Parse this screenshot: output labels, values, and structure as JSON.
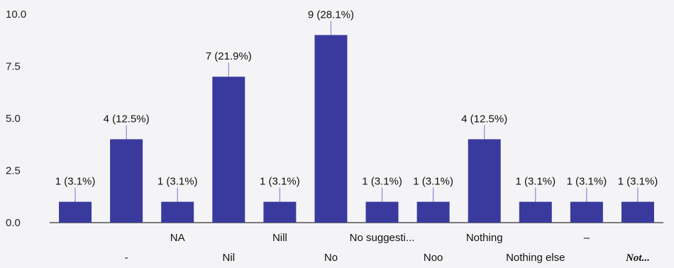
{
  "chart_data": {
    "type": "bar",
    "categories": [
      "",
      "-",
      "NA",
      "Nil",
      "Nill",
      "No",
      "No suggesti...",
      "Noo",
      "Nothing",
      "Nothing else",
      "–",
      "Not..."
    ],
    "values": [
      1,
      4,
      1,
      7,
      1,
      9,
      1,
      1,
      4,
      1,
      1,
      1
    ],
    "data_labels": [
      "1 (3.1%)",
      "4 (12.5%)",
      "1 (3.1%)",
      "7 (21.9%)",
      "1 (3.1%)",
      "9 (28.1%)",
      "1 (3.1%)",
      "1 (3.1%)",
      "4 (12.5%)",
      "1 (3.1%)",
      "1 (3.1%)",
      "1 (3.1%)"
    ],
    "ylim": [
      0,
      10
    ],
    "yticks": [
      "0.0",
      "2.5",
      "5.0",
      "7.5",
      "10.0"
    ],
    "bar_color": "#3a3a9e",
    "grid": false,
    "title": "",
    "xlabel": "",
    "ylabel": ""
  }
}
